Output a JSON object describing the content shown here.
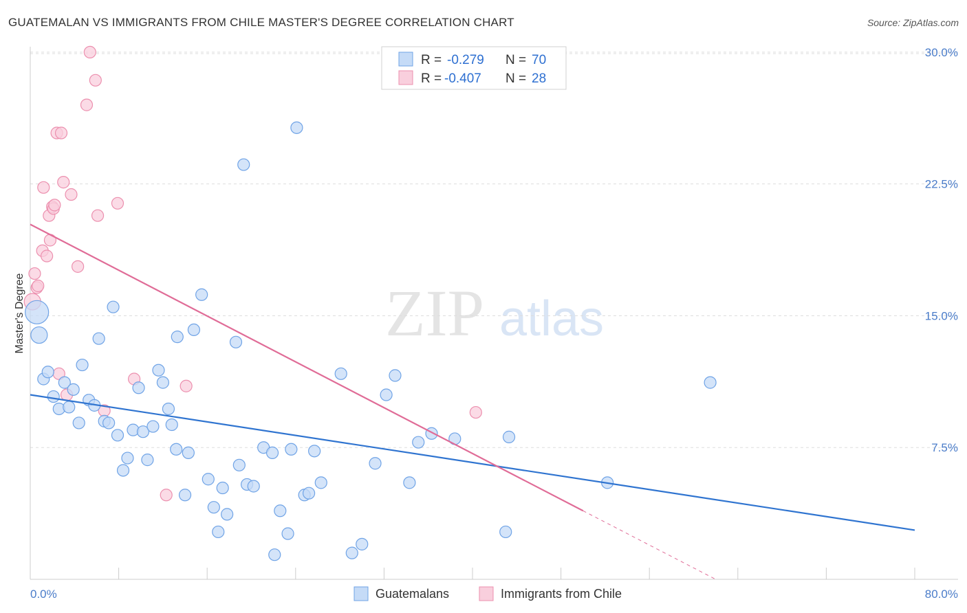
{
  "header": {
    "title": "GUATEMALAN VS IMMIGRANTS FROM CHILE MASTER'S DEGREE CORRELATION CHART",
    "source": "Source: ZipAtlas.com"
  },
  "watermark": {
    "zip": "ZIP",
    "atlas": "atlas"
  },
  "colors": {
    "blue": "#6fa3e6",
    "blue_fill": "#c5dbf7",
    "blue_line": "#2f74d0",
    "pink": "#ec8fae",
    "pink_fill": "#f9cfdd",
    "pink_line": "#e06c97",
    "axis_text": "#4a7cc9",
    "grid": "#dddddd"
  },
  "legend": {
    "r_label": "R =",
    "n_label": "N =",
    "rows": [
      {
        "r": "-0.279",
        "n": "70"
      },
      {
        "r": "-0.407",
        "n": "28"
      }
    ]
  },
  "bottom_legend": [
    "Guatemalans",
    "Immigrants from Chile"
  ],
  "chart_data": {
    "type": "scatter",
    "title": "GUATEMALAN VS IMMIGRANTS FROM CHILE MASTER'S DEGREE CORRELATION CHART",
    "xlabel": "",
    "ylabel": "Master's Degree",
    "xlim": [
      0,
      80
    ],
    "ylim": [
      0,
      30.7
    ],
    "x_tick_labels": [
      "0.0%",
      "80.0%"
    ],
    "y_ticks": [
      7.5,
      15.0,
      22.5,
      30.0
    ],
    "y_tick_labels": [
      "7.5%",
      "15.0%",
      "22.5%",
      "30.0%"
    ],
    "series": [
      {
        "name": "Guatemalans",
        "r": -0.279,
        "n": 70,
        "trend": {
          "x": [
            0,
            80
          ],
          "y": [
            10.5,
            2.8
          ]
        },
        "points": [
          [
            0.6,
            15.2,
            3
          ],
          [
            0.8,
            13.9,
            2
          ],
          [
            1.2,
            11.4,
            1
          ],
          [
            1.6,
            11.8,
            1
          ],
          [
            2.1,
            10.4,
            1
          ],
          [
            2.6,
            9.7,
            1
          ],
          [
            3.1,
            11.2,
            1
          ],
          [
            3.5,
            9.8,
            1
          ],
          [
            3.9,
            10.8,
            1
          ],
          [
            4.4,
            8.9,
            1
          ],
          [
            4.7,
            12.2,
            1
          ],
          [
            5.3,
            10.2,
            1
          ],
          [
            5.8,
            9.9,
            1
          ],
          [
            6.2,
            13.7,
            1
          ],
          [
            6.7,
            9.0,
            1
          ],
          [
            7.1,
            8.9,
            1
          ],
          [
            7.5,
            15.5,
            1
          ],
          [
            7.9,
            8.2,
            1
          ],
          [
            8.4,
            6.2,
            1
          ],
          [
            8.8,
            6.9,
            1
          ],
          [
            9.3,
            8.5,
            1
          ],
          [
            9.8,
            10.9,
            1
          ],
          [
            10.2,
            8.4,
            1
          ],
          [
            10.6,
            6.8,
            1
          ],
          [
            11.1,
            8.7,
            1
          ],
          [
            11.6,
            11.9,
            1
          ],
          [
            12.0,
            11.2,
            1
          ],
          [
            12.5,
            9.7,
            1
          ],
          [
            12.8,
            8.8,
            1
          ],
          [
            13.2,
            7.4,
            1
          ],
          [
            13.3,
            13.8,
            1
          ],
          [
            14.0,
            4.8,
            1
          ],
          [
            14.3,
            7.2,
            1
          ],
          [
            14.8,
            14.2,
            1
          ],
          [
            15.5,
            16.2,
            1
          ],
          [
            16.1,
            5.7,
            1
          ],
          [
            16.6,
            4.1,
            1
          ],
          [
            17.0,
            2.7,
            1
          ],
          [
            17.4,
            5.2,
            1
          ],
          [
            17.8,
            3.7,
            1
          ],
          [
            18.6,
            13.5,
            1
          ],
          [
            18.9,
            6.5,
            1
          ],
          [
            19.3,
            23.6,
            1
          ],
          [
            19.6,
            5.4,
            1
          ],
          [
            20.2,
            5.3,
            1
          ],
          [
            21.1,
            7.5,
            1
          ],
          [
            21.9,
            7.2,
            1
          ],
          [
            22.1,
            1.4,
            1
          ],
          [
            22.6,
            3.9,
            1
          ],
          [
            23.3,
            2.6,
            1
          ],
          [
            23.6,
            7.4,
            1
          ],
          [
            24.1,
            25.7,
            1
          ],
          [
            24.8,
            4.8,
            1
          ],
          [
            25.2,
            4.9,
            1
          ],
          [
            25.7,
            7.3,
            1
          ],
          [
            26.3,
            5.5,
            1
          ],
          [
            28.1,
            11.7,
            1
          ],
          [
            29.1,
            1.5,
            1
          ],
          [
            30.0,
            2.0,
            1
          ],
          [
            31.2,
            6.6,
            1
          ],
          [
            32.2,
            10.5,
            1
          ],
          [
            33.0,
            11.6,
            1
          ],
          [
            34.3,
            5.5,
            1
          ],
          [
            35.1,
            7.8,
            1
          ],
          [
            36.3,
            8.3,
            1
          ],
          [
            38.4,
            8.0,
            1
          ],
          [
            43.0,
            2.7,
            1
          ],
          [
            43.3,
            8.1,
            1
          ],
          [
            52.2,
            5.5,
            1
          ],
          [
            61.5,
            11.2,
            1
          ]
        ]
      },
      {
        "name": "Immigrants from Chile",
        "r": -0.407,
        "n": 28,
        "trend": {
          "x": [
            0,
            50
          ],
          "y": [
            20.2,
            3.9
          ],
          "dash_x": [
            50,
            62
          ],
          "dash_y": [
            3.9,
            0
          ]
        },
        "points": [
          [
            0.2,
            15.8,
            2
          ],
          [
            0.4,
            17.4,
            1
          ],
          [
            0.6,
            16.6,
            1
          ],
          [
            0.7,
            16.7,
            1
          ],
          [
            1.1,
            18.7,
            1
          ],
          [
            1.2,
            22.3,
            1
          ],
          [
            1.5,
            18.4,
            1
          ],
          [
            1.7,
            20.7,
            1
          ],
          [
            1.8,
            19.3,
            1
          ],
          [
            2.0,
            21.2,
            1
          ],
          [
            2.1,
            21.1,
            1
          ],
          [
            2.2,
            21.3,
            1
          ],
          [
            2.4,
            25.4,
            1
          ],
          [
            2.6,
            11.7,
            1
          ],
          [
            2.8,
            25.4,
            1
          ],
          [
            3.0,
            22.6,
            1
          ],
          [
            3.3,
            10.5,
            1
          ],
          [
            3.7,
            21.9,
            1
          ],
          [
            4.3,
            17.8,
            1
          ],
          [
            5.1,
            27.0,
            1
          ],
          [
            5.4,
            30.0,
            1
          ],
          [
            5.9,
            28.4,
            1
          ],
          [
            6.1,
            20.7,
            1
          ],
          [
            6.7,
            9.6,
            1
          ],
          [
            7.9,
            21.4,
            1
          ],
          [
            9.4,
            11.4,
            1
          ],
          [
            12.3,
            4.8,
            1
          ],
          [
            14.1,
            11.0,
            1
          ],
          [
            40.3,
            9.5,
            1
          ]
        ]
      }
    ]
  }
}
